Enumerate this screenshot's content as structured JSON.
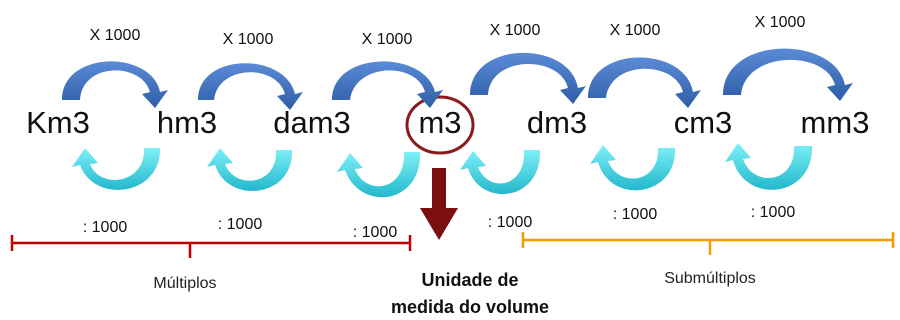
{
  "units": [
    "Km3",
    "hm3",
    "dam3",
    "m3",
    "dm3",
    "cm3",
    "mm3"
  ],
  "multiply_label": "X 1000",
  "divide_label": ": 1000",
  "groups": {
    "multiples": "Múltiplos",
    "submultiples": "Submúltiplos"
  },
  "caption": {
    "line1": "Unidade de",
    "line2": "medida do volume"
  },
  "highlighted_unit": "m3",
  "colors": {
    "multiply_arrow": "#4472C4",
    "divide_arrow": "#33CCDD",
    "highlight_circle": "#8B1A1A",
    "down_arrow": "#7B0E0E",
    "multiples_bracket": "#C00000",
    "submultiples_bracket": "#F79A00"
  }
}
